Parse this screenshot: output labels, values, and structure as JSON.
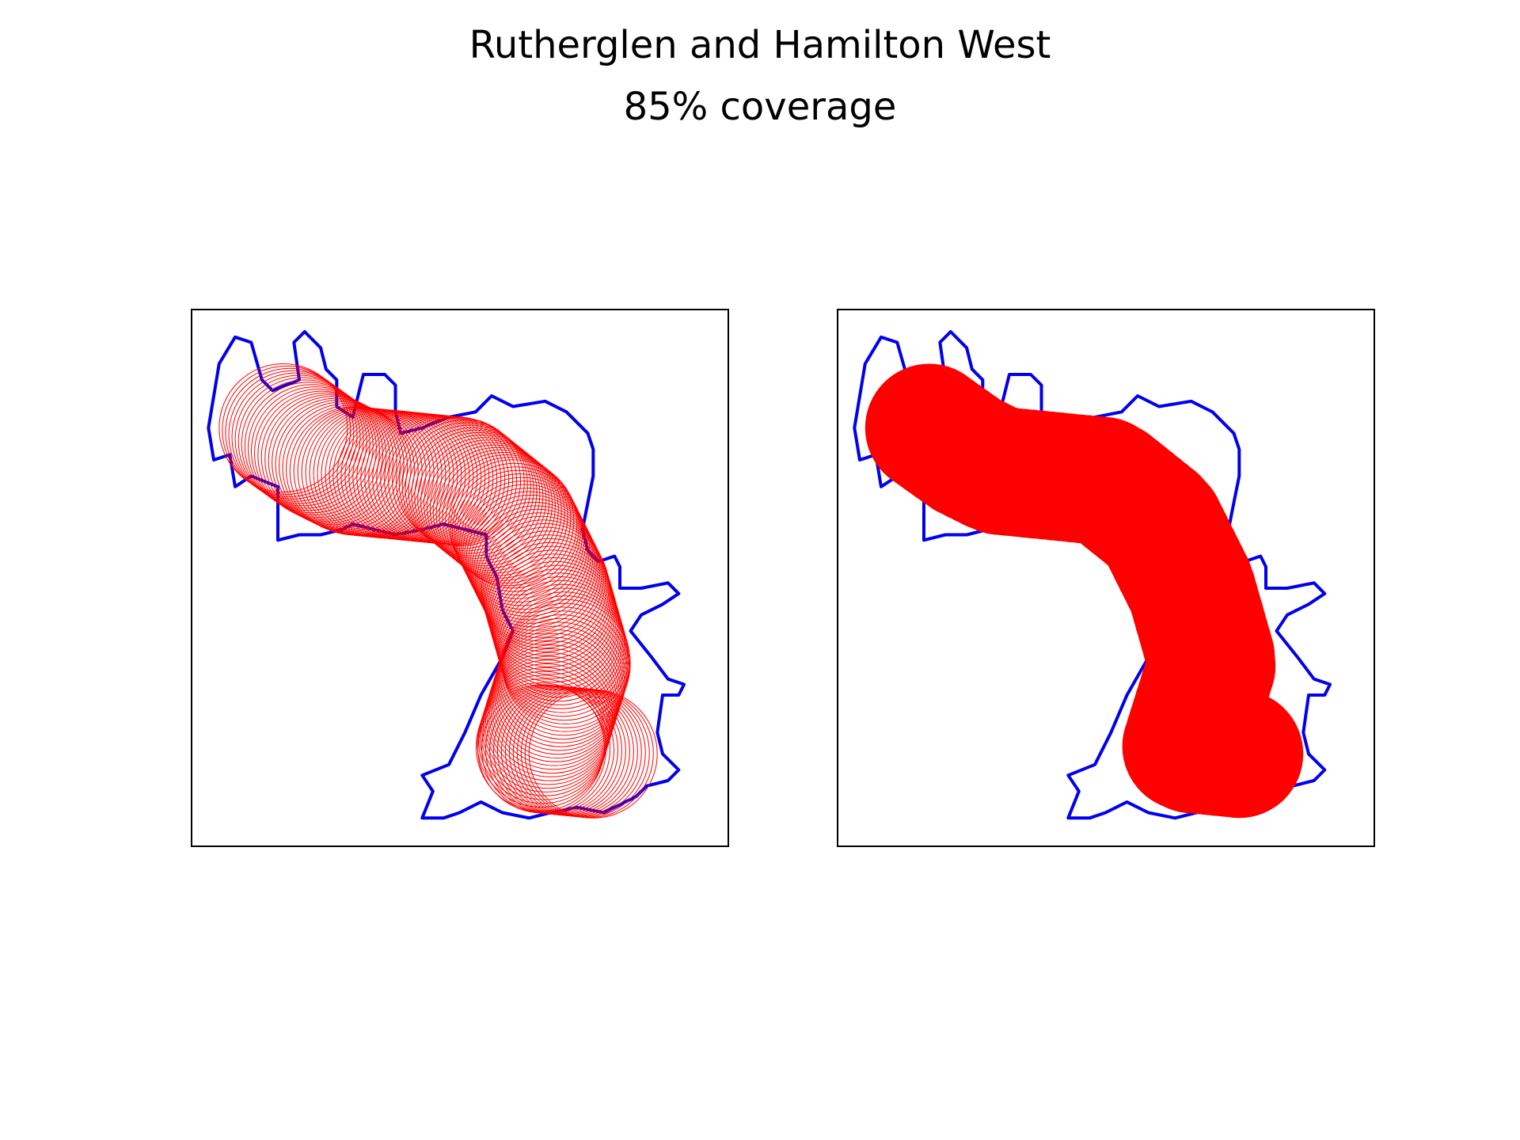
{
  "figure": {
    "title": "Rutherglen and Hamilton West",
    "subtitle": "85% coverage"
  },
  "colors": {
    "boundary": "#0000ee",
    "coverage": "#ff0000",
    "frame": "#000000",
    "background": "#ffffff"
  },
  "map": {
    "boundary_outline": [
      [
        0.03,
        0.22
      ],
      [
        0.05,
        0.1
      ],
      [
        0.08,
        0.05
      ],
      [
        0.11,
        0.06
      ],
      [
        0.13,
        0.13
      ],
      [
        0.15,
        0.15
      ],
      [
        0.2,
        0.13
      ],
      [
        0.19,
        0.06
      ],
      [
        0.21,
        0.04
      ],
      [
        0.24,
        0.07
      ],
      [
        0.25,
        0.11
      ],
      [
        0.27,
        0.13
      ],
      [
        0.27,
        0.18
      ],
      [
        0.3,
        0.2
      ],
      [
        0.32,
        0.12
      ],
      [
        0.36,
        0.12
      ],
      [
        0.38,
        0.14
      ],
      [
        0.38,
        0.19
      ],
      [
        0.39,
        0.23
      ],
      [
        0.43,
        0.22
      ],
      [
        0.48,
        0.2
      ],
      [
        0.53,
        0.19
      ],
      [
        0.56,
        0.16
      ],
      [
        0.6,
        0.18
      ],
      [
        0.66,
        0.17
      ],
      [
        0.7,
        0.19
      ],
      [
        0.74,
        0.23
      ],
      [
        0.75,
        0.26
      ],
      [
        0.75,
        0.31
      ],
      [
        0.74,
        0.36
      ],
      [
        0.73,
        0.41
      ],
      [
        0.74,
        0.45
      ],
      [
        0.76,
        0.47
      ],
      [
        0.79,
        0.46
      ],
      [
        0.8,
        0.48
      ],
      [
        0.8,
        0.52
      ],
      [
        0.84,
        0.52
      ],
      [
        0.89,
        0.51
      ],
      [
        0.91,
        0.53
      ],
      [
        0.88,
        0.55
      ],
      [
        0.84,
        0.57
      ],
      [
        0.82,
        0.6
      ],
      [
        0.86,
        0.65
      ],
      [
        0.89,
        0.69
      ],
      [
        0.92,
        0.7
      ],
      [
        0.91,
        0.72
      ],
      [
        0.88,
        0.72
      ],
      [
        0.87,
        0.79
      ],
      [
        0.88,
        0.83
      ],
      [
        0.91,
        0.86
      ],
      [
        0.89,
        0.88
      ],
      [
        0.85,
        0.89
      ],
      [
        0.83,
        0.91
      ],
      [
        0.77,
        0.94
      ],
      [
        0.72,
        0.93
      ],
      [
        0.67,
        0.94
      ],
      [
        0.63,
        0.95
      ],
      [
        0.58,
        0.94
      ],
      [
        0.54,
        0.92
      ],
      [
        0.5,
        0.94
      ],
      [
        0.47,
        0.95
      ],
      [
        0.43,
        0.95
      ],
      [
        0.45,
        0.9
      ],
      [
        0.43,
        0.87
      ],
      [
        0.48,
        0.85
      ],
      [
        0.51,
        0.79
      ],
      [
        0.54,
        0.72
      ],
      [
        0.58,
        0.65
      ],
      [
        0.6,
        0.6
      ],
      [
        0.58,
        0.56
      ],
      [
        0.57,
        0.5
      ],
      [
        0.55,
        0.46
      ],
      [
        0.55,
        0.42
      ],
      [
        0.51,
        0.41
      ],
      [
        0.47,
        0.4
      ],
      [
        0.43,
        0.41
      ],
      [
        0.38,
        0.42
      ],
      [
        0.34,
        0.41
      ],
      [
        0.3,
        0.4
      ],
      [
        0.28,
        0.41
      ],
      [
        0.24,
        0.42
      ],
      [
        0.2,
        0.42
      ],
      [
        0.16,
        0.43
      ],
      [
        0.16,
        0.33
      ],
      [
        0.11,
        0.31
      ],
      [
        0.08,
        0.33
      ],
      [
        0.07,
        0.27
      ],
      [
        0.04,
        0.28
      ],
      [
        0.03,
        0.22
      ]
    ],
    "coverage_path": [
      [
        0.17,
        0.22
      ],
      [
        0.24,
        0.27
      ],
      [
        0.3,
        0.3
      ],
      [
        0.4,
        0.31
      ],
      [
        0.5,
        0.32
      ],
      [
        0.6,
        0.4
      ],
      [
        0.66,
        0.52
      ],
      [
        0.7,
        0.66
      ],
      [
        0.65,
        0.82
      ],
      [
        0.75,
        0.83
      ]
    ],
    "coverage_radius": 0.12
  }
}
